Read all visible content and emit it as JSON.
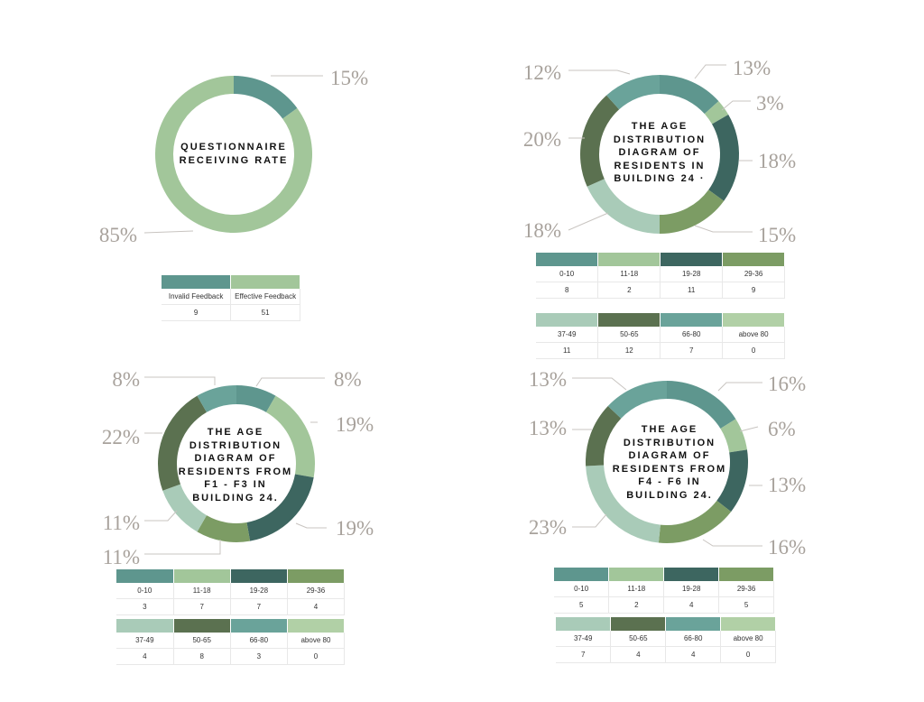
{
  "colors": {
    "invalid": "#5e968e",
    "effective": "#a2c69a",
    "age_0_10": "#5e968e",
    "age_11_18": "#a2c69a",
    "age_19_28": "#3d6660",
    "age_29_36": "#7c9c64",
    "age_37_49": "#a9cbb8",
    "age_50_65": "#5b7150",
    "age_66_80": "#6aa39a",
    "age_above_80": "#b1d0a6"
  },
  "chart_data": [
    {
      "type": "pie",
      "title": "QUESTIONNAIRE RECEIVING RATE",
      "categories": [
        "Invalid Feedback",
        "Effective Feedback"
      ],
      "values": [
        9,
        51
      ],
      "percent_labels": [
        "15%",
        "85%"
      ],
      "legend": "below"
    },
    {
      "type": "pie",
      "title": "THE AGE DISTRIBUTION DIAGRAM OF RESIDENTS IN BUILDING 24 ·",
      "categories": [
        "0-10",
        "11-18",
        "19-28",
        "29-36",
        "37-49",
        "50-65",
        "66-80",
        "above 80"
      ],
      "values": [
        8,
        2,
        11,
        9,
        11,
        12,
        7,
        0
      ],
      "percent_labels": [
        "13%",
        "3%",
        "18%",
        "15%",
        "18%",
        "20%",
        "12%"
      ],
      "legend": "below"
    },
    {
      "type": "pie",
      "title": "THE AGE DISTRIBUTION DIAGRAM OF RESIDENTS FROM F1 - F3 IN BUILDING 24.",
      "categories": [
        "0-10",
        "11-18",
        "19-28",
        "29-36",
        "37-49",
        "50-65",
        "66-80",
        "above 80"
      ],
      "values": [
        3,
        7,
        7,
        4,
        4,
        8,
        3,
        0
      ],
      "percent_labels": [
        "8%",
        "19%",
        "19%",
        "11%",
        "11%",
        "22%",
        "8%"
      ],
      "legend": "below"
    },
    {
      "type": "pie",
      "title": "THE AGE DISTRIBUTION DIAGRAM OF RESIDENTS FROM F4 - F6 IN BUILDING 24.",
      "categories": [
        "0-10",
        "11-18",
        "19-28",
        "29-36",
        "37-49",
        "50-65",
        "66-80",
        "above 80"
      ],
      "values": [
        5,
        2,
        4,
        5,
        7,
        4,
        4,
        0
      ],
      "percent_labels": [
        "16%",
        "6%",
        "13%",
        "16%",
        "23%",
        "13%",
        "13%"
      ],
      "legend": "below"
    }
  ]
}
